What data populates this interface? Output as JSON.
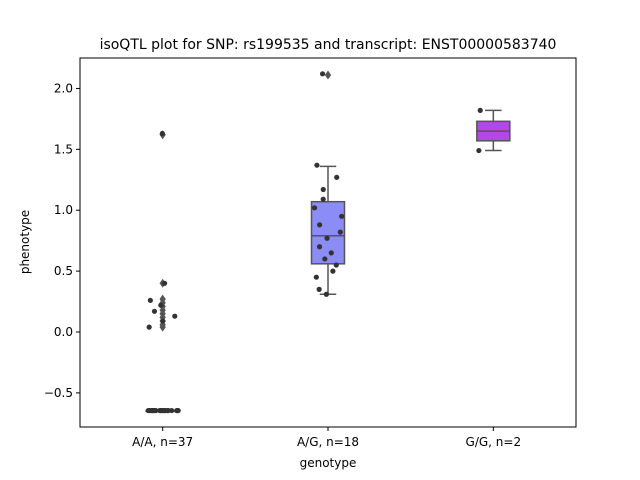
{
  "chart_data": {
    "type": "box",
    "title": "isoQTL plot for SNP: rs199535 and transcript: ENST00000583740",
    "xlabel": "genotype",
    "ylabel": "phenotype",
    "ylim": [
      -0.78,
      2.25
    ],
    "yticks": [
      -0.5,
      0.0,
      0.5,
      1.0,
      1.5,
      2.0
    ],
    "ytick_labels": [
      "−0.5",
      "0.0",
      "0.5",
      "1.0",
      "1.5",
      "2.0"
    ],
    "categories": [
      "A/A, n=37",
      "A/G, n=18",
      "G/G, n=2"
    ],
    "colors": {
      "box_fills": [
        "#f0f0f0",
        "#8c8cf6",
        "#b448e6"
      ],
      "line": "#555555",
      "point": "#333333"
    },
    "boxes": [
      {
        "category": "A/A, n=37",
        "q1": -0.645,
        "median": -0.645,
        "q3": -0.645,
        "whisker_low": -0.645,
        "whisker_high": -0.645,
        "outliers": [
          1.62,
          0.4,
          0.27,
          0.24,
          0.21,
          0.18,
          0.15,
          0.12,
          0.09,
          0.06,
          0.04
        ]
      },
      {
        "category": "A/G, n=18",
        "q1": 0.56,
        "median": 0.79,
        "q3": 1.07,
        "whisker_low": 0.31,
        "whisker_high": 1.36,
        "outliers": [
          2.11
        ]
      },
      {
        "category": "G/G, n=2",
        "q1": 1.57,
        "median": 1.65,
        "q3": 1.73,
        "whisker_low": 1.49,
        "whisker_high": 1.82,
        "outliers": []
      }
    ],
    "points": [
      {
        "category": 0,
        "values": [
          1.63,
          0.4,
          0.26,
          0.17,
          0.22,
          0.09,
          0.04,
          0.13,
          -0.645,
          -0.645,
          -0.645,
          -0.645,
          -0.645,
          -0.645,
          -0.645,
          -0.645,
          -0.645,
          -0.645,
          -0.645,
          -0.645,
          -0.645,
          -0.645,
          -0.645,
          -0.645,
          -0.645,
          -0.645,
          -0.645,
          -0.645,
          -0.645,
          -0.645,
          -0.645,
          -0.645,
          -0.645,
          -0.645,
          -0.645,
          -0.645,
          -0.645
        ]
      },
      {
        "category": 1,
        "values": [
          2.12,
          1.37,
          1.27,
          1.17,
          1.09,
          1.02,
          0.95,
          0.88,
          0.82,
          0.77,
          0.7,
          0.65,
          0.6,
          0.55,
          0.5,
          0.45,
          0.35,
          0.31
        ]
      },
      {
        "category": 2,
        "values": [
          1.82,
          1.49
        ]
      }
    ],
    "grid": false,
    "legend": "none"
  }
}
